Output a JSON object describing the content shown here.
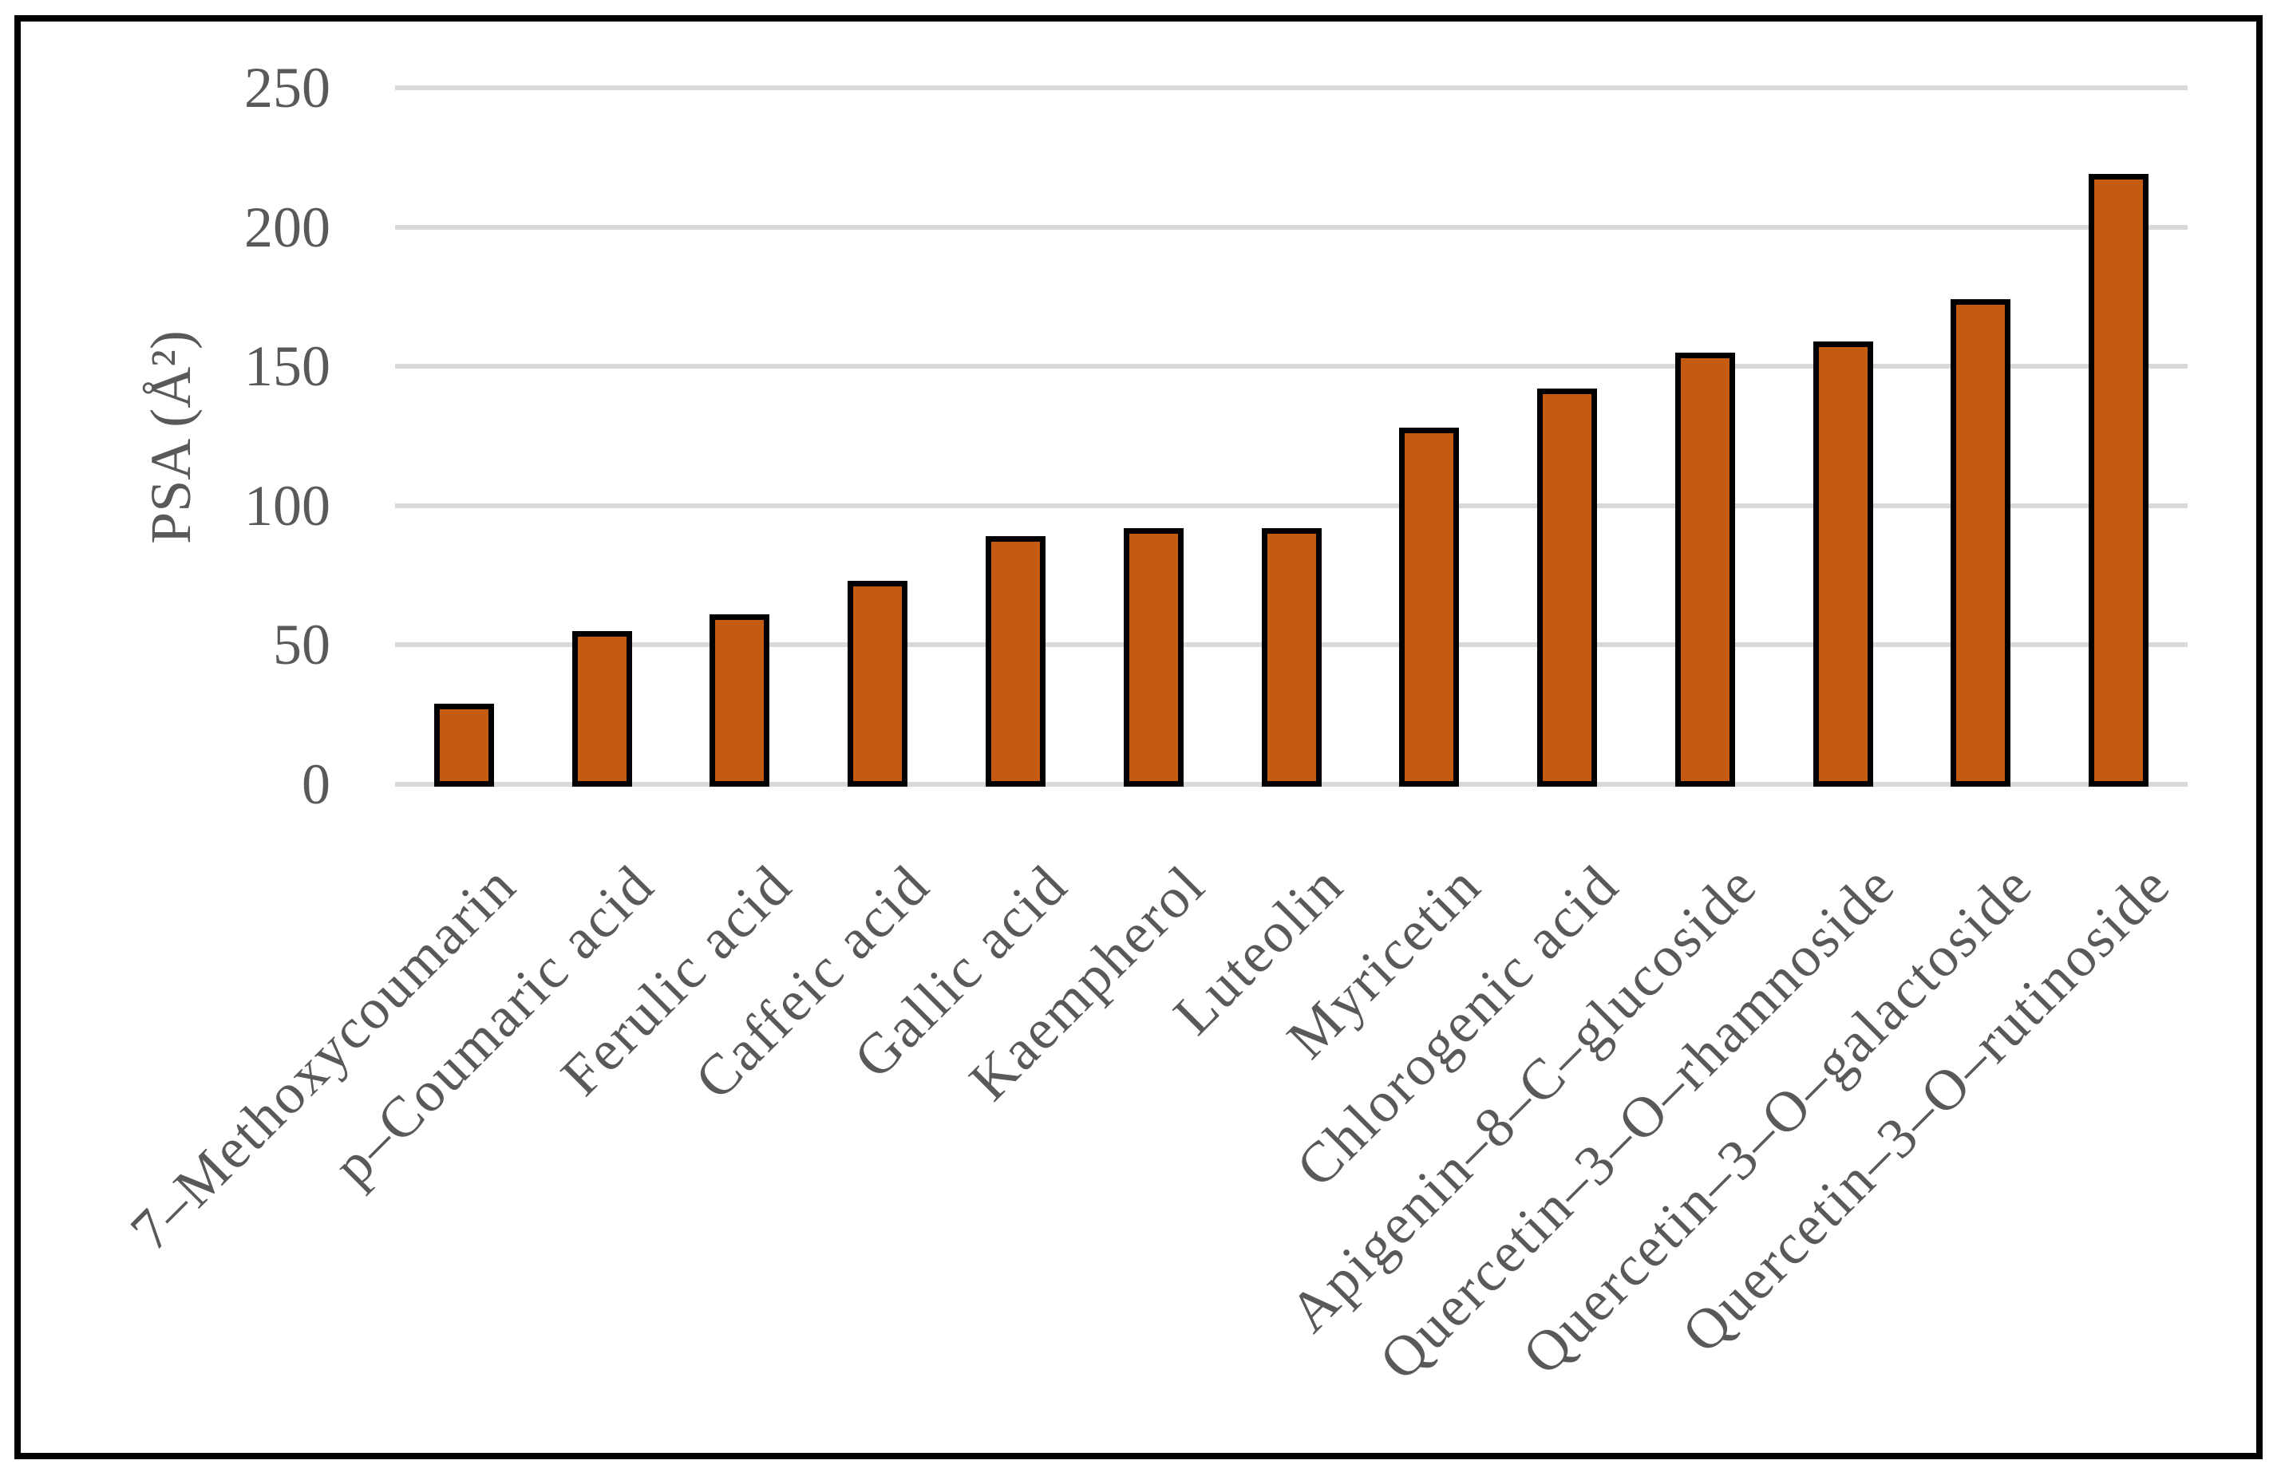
{
  "chart_data": {
    "type": "bar",
    "title": "",
    "xlabel": "",
    "ylabel": "PSA (Å²)",
    "categories": [
      "7–Methoxycoumarin",
      "p–Coumaric acid",
      "Ferulic acid",
      "Caffeic acid",
      "Gallic acid",
      "Kaempherol",
      "Luteolin",
      "Myricetin",
      "Chlorogenic acid",
      "Apigenin–8–C–glucoside",
      "Quercetin–3–O–rhamnoside",
      "Quercetin–3–O–galactoside",
      "Quercetin–3–O–rutinoside"
    ],
    "values": [
      28,
      54,
      60,
      72,
      88,
      91,
      91,
      127,
      141,
      154,
      158,
      173,
      218
    ],
    "ylim": [
      0,
      250
    ],
    "yticks": [
      0,
      50,
      100,
      150,
      200,
      250
    ],
    "grid": "horizontal-gridlines-on",
    "legend": "none",
    "colors": {
      "bar_fill": "#C55A11",
      "bar_border": "#000000",
      "gridline": "#D9D9D9",
      "axis_text": "#595959",
      "frame_border": "#000000",
      "background": "#FFFFFF"
    }
  }
}
